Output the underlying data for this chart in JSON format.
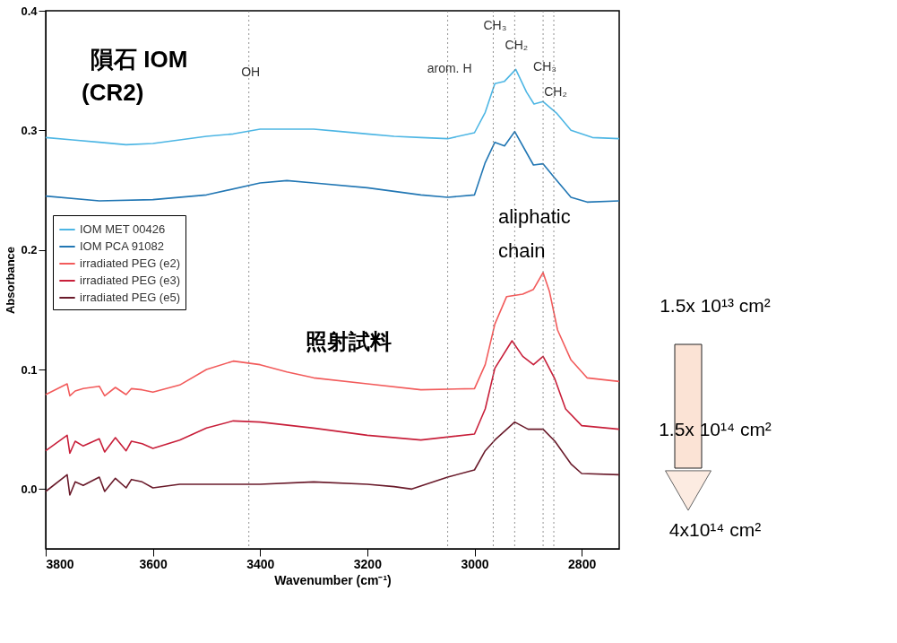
{
  "chart_data": {
    "type": "line",
    "xlabel": "Wavenumber (cm⁻¹)",
    "ylabel": "Absorbance",
    "xlim": [
      3800,
      2730
    ],
    "xticks": [
      3800,
      3600,
      3400,
      3200,
      3000,
      2800
    ],
    "ylim": [
      -0.05,
      0.4
    ],
    "yticks": [
      {
        "value": 0,
        "label": "0.0"
      },
      0.1,
      0.2,
      0.3,
      0.4
    ],
    "legend": "left",
    "grid": false,
    "line_style": "solid",
    "ref_lines": [
      {
        "axis": "x",
        "value": 3421,
        "label": "OH",
        "line_style": "dotted"
      },
      {
        "axis": "x",
        "value": 3050,
        "label": "arom. H",
        "line_style": "dotted"
      },
      {
        "axis": "x",
        "value": 2965,
        "label": "CH₃",
        "line_style": "dotted"
      },
      {
        "axis": "x",
        "value": 2925,
        "label": "CH₂",
        "line_style": "dotted"
      },
      {
        "axis": "x",
        "value": 2872,
        "label": "CH₃",
        "line_style": "dotted"
      },
      {
        "axis": "x",
        "value": 2852,
        "label": "CH₂",
        "line_style": "dotted"
      }
    ],
    "annotations": [
      "隕石 IOM",
      "(CR2)",
      "照射試料",
      "aliphatic",
      "chain",
      "1.5x 10¹³ cm²",
      "1.5x 10¹⁴ cm²",
      "4x10¹⁴ cm²"
    ],
    "series": [
      {
        "name": "IOM MET 00426",
        "color": "#4db6e4",
        "x": [
          3800,
          3750,
          3700,
          3650,
          3600,
          3550,
          3500,
          3450,
          3400,
          3350,
          3300,
          3250,
          3200,
          3150,
          3100,
          3050,
          3000,
          2980,
          2962,
          2944,
          2923,
          2903,
          2889,
          2872,
          2846,
          2820,
          2780,
          2730
        ],
        "values": [
          0.294,
          0.292,
          0.29,
          0.288,
          0.289,
          0.292,
          0.295,
          0.297,
          0.301,
          0.301,
          0.301,
          0.299,
          0.297,
          0.295,
          0.294,
          0.293,
          0.298,
          0.315,
          0.339,
          0.341,
          0.351,
          0.332,
          0.322,
          0.324,
          0.314,
          0.3,
          0.294,
          0.293
        ]
      },
      {
        "name": "IOM PCA 91082",
        "color": "#2277b4",
        "x": [
          3800,
          3700,
          3600,
          3500,
          3400,
          3350,
          3300,
          3200,
          3100,
          3050,
          3000,
          2980,
          2962,
          2944,
          2925,
          2905,
          2890,
          2872,
          2850,
          2820,
          2790,
          2730
        ],
        "values": [
          0.245,
          0.241,
          0.242,
          0.246,
          0.256,
          0.258,
          0.256,
          0.252,
          0.246,
          0.244,
          0.246,
          0.273,
          0.29,
          0.287,
          0.299,
          0.283,
          0.271,
          0.272,
          0.26,
          0.244,
          0.24,
          0.241
        ]
      },
      {
        "name": "irradiated PEG (e2)",
        "color": "#f25b5b",
        "x": [
          3800,
          3760,
          3755,
          3745,
          3730,
          3700,
          3690,
          3670,
          3650,
          3640,
          3620,
          3600,
          3550,
          3500,
          3450,
          3400,
          3350,
          3300,
          3200,
          3100,
          3000,
          2980,
          2962,
          2940,
          2910,
          2890,
          2872,
          2860,
          2845,
          2820,
          2790,
          2730
        ],
        "values": [
          0.079,
          0.088,
          0.078,
          0.082,
          0.084,
          0.086,
          0.078,
          0.085,
          0.079,
          0.084,
          0.083,
          0.081,
          0.087,
          0.1,
          0.107,
          0.104,
          0.098,
          0.093,
          0.088,
          0.083,
          0.084,
          0.104,
          0.138,
          0.161,
          0.163,
          0.167,
          0.181,
          0.165,
          0.133,
          0.108,
          0.093,
          0.09
        ]
      },
      {
        "name": "irradiated PEG (e3)",
        "color": "#c81f3a",
        "x": [
          3800,
          3760,
          3755,
          3745,
          3730,
          3700,
          3690,
          3670,
          3650,
          3640,
          3620,
          3600,
          3550,
          3500,
          3450,
          3400,
          3300,
          3200,
          3100,
          3000,
          2980,
          2962,
          2930,
          2910,
          2890,
          2872,
          2850,
          2830,
          2800,
          2730
        ],
        "values": [
          0.032,
          0.045,
          0.03,
          0.04,
          0.036,
          0.042,
          0.031,
          0.043,
          0.032,
          0.04,
          0.038,
          0.034,
          0.041,
          0.051,
          0.057,
          0.056,
          0.051,
          0.045,
          0.041,
          0.046,
          0.067,
          0.101,
          0.124,
          0.111,
          0.104,
          0.111,
          0.092,
          0.067,
          0.053,
          0.05
        ]
      },
      {
        "name": "irradiated PEG (e5)",
        "color": "#6a1b2b",
        "x": [
          3800,
          3760,
          3755,
          3745,
          3730,
          3700,
          3690,
          3670,
          3650,
          3640,
          3620,
          3600,
          3550,
          3500,
          3400,
          3300,
          3200,
          3150,
          3117,
          3050,
          3000,
          2980,
          2962,
          2925,
          2900,
          2872,
          2850,
          2820,
          2800,
          2730
        ],
        "values": [
          -0.002,
          0.012,
          -0.005,
          0.006,
          0.003,
          0.01,
          -0.002,
          0.009,
          0.001,
          0.008,
          0.006,
          0.001,
          0.004,
          0.004,
          0.004,
          0.006,
          0.004,
          0.002,
          0.0,
          0.01,
          0.016,
          0.032,
          0.041,
          0.056,
          0.05,
          0.05,
          0.04,
          0.021,
          0.013,
          0.012
        ]
      }
    ]
  }
}
